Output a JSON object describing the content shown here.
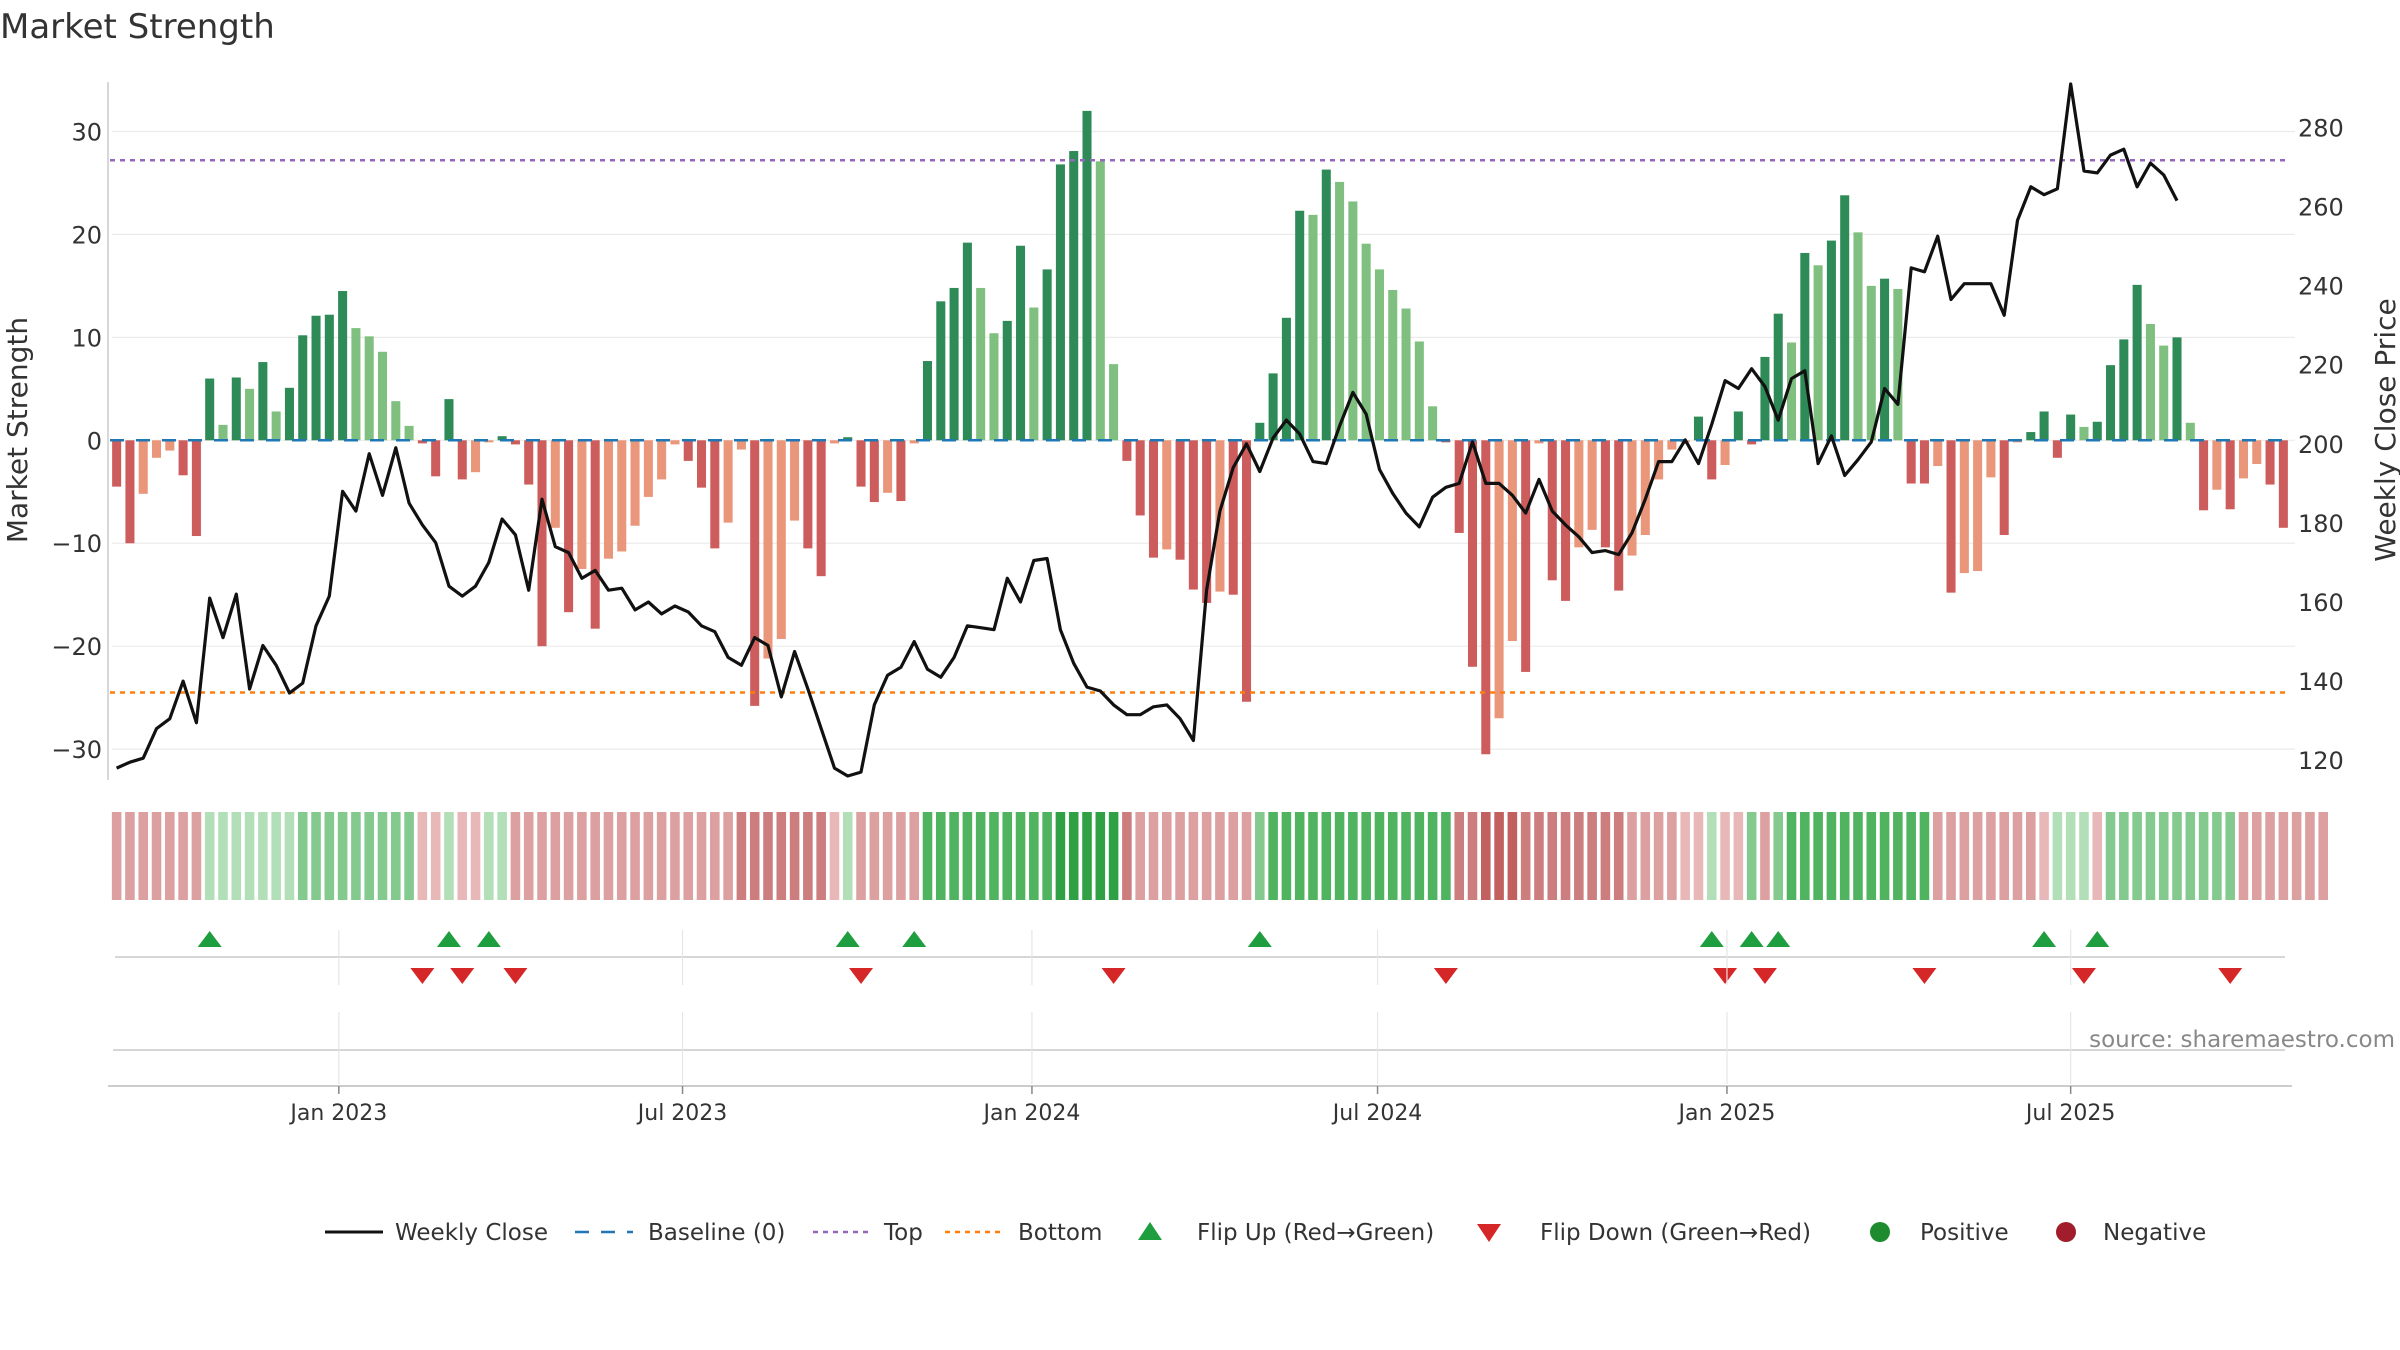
{
  "colors": {
    "pos_dark": "#2e8b57",
    "pos_light": "#7fbf7f",
    "neg_dark": "#cd5c5c",
    "neg_light": "#e9967a",
    "close_line": "#111111",
    "baseline": "#1f77b4",
    "top_line": "#9467bd",
    "bottom_line": "#ff7f0e",
    "flip_up": "#1f9e3f",
    "flip_down": "#d62728",
    "positive_dot": "#1e8c2e",
    "negative_dot": "#a11d2b"
  },
  "chart_data": {
    "type": "bar",
    "title": "Market Strength",
    "ylabel_left": "Market Strength",
    "ylabel_right": "Weekly Close Price",
    "ylim_left": [
      -33,
      35
    ],
    "yticks_left": [
      30,
      20,
      10,
      0,
      -10,
      -20,
      -30
    ],
    "yticks_left_labels": [
      "30",
      "20",
      "10",
      "0",
      "−10",
      "−20",
      "−30"
    ],
    "ylim_right": [
      115,
      292
    ],
    "yticks_right": [
      280,
      260,
      240,
      220,
      200,
      180,
      160,
      140,
      120
    ],
    "yticks_right_labels": [
      "280",
      "260",
      "240",
      "220",
      "200",
      "180",
      "160",
      "140",
      "120"
    ],
    "top_level": 27.2,
    "bottom_level": -24.5,
    "x_start": "2022-09-06",
    "week_step_days": 7,
    "xticks": [
      {
        "label": "Jan 2023",
        "date": "2023-01-01"
      },
      {
        "label": "Jul 2023",
        "date": "2023-07-01"
      },
      {
        "label": "Jan 2024",
        "date": "2024-01-01"
      },
      {
        "label": "Jul 2024",
        "date": "2024-07-01"
      },
      {
        "label": "Jan 2025",
        "date": "2025-01-01"
      },
      {
        "label": "Jul 2025",
        "date": "2025-07-01"
      }
    ],
    "strength": [
      -4.5,
      -10,
      -5.2,
      -1.7,
      -1,
      -3.4,
      -9.3,
      6,
      1.5,
      6.1,
      5,
      7.6,
      2.8,
      5.1,
      10.2,
      12.1,
      12.2,
      14.5,
      10.9,
      10.1,
      8.6,
      3.8,
      1.4,
      -0.3,
      -3.5,
      4,
      -3.8,
      -3.1,
      -0.2,
      0.4,
      -0.4,
      -4.3,
      -20,
      -8.5,
      -16.7,
      -12.5,
      -18.3,
      -11.5,
      -10.8,
      -8.3,
      -5.5,
      -3.8,
      -0.4,
      -2,
      -4.6,
      -10.5,
      -8,
      -0.9,
      -25.8,
      -21.2,
      -19.3,
      -7.8,
      -10.5,
      -13.2,
      -0.3,
      0.3,
      -4.5,
      -6,
      -5.1,
      -5.9,
      -0.3,
      7.7,
      13.5,
      14.8,
      19.2,
      14.8,
      10.4,
      11.6,
      18.9,
      12.9,
      16.6,
      26.8,
      28.1,
      32,
      27.1,
      7.4,
      -2,
      -7.3,
      -11.4,
      -10.6,
      -11.6,
      -14.5,
      -15.8,
      -14.7,
      -15,
      -25.4,
      1.7,
      6.5,
      11.9,
      22.3,
      21.9,
      26.3,
      25.1,
      23.2,
      19.1,
      16.6,
      14.6,
      12.8,
      9.6,
      3.3,
      -0.2,
      -9,
      -22,
      -30.5,
      -27,
      -19.5,
      -22.5,
      -0.3,
      -13.6,
      -15.6,
      -10.4,
      -8.7,
      -10.4,
      -14.6,
      -11.2,
      -9.2,
      -3.8,
      -0.9,
      -0.2,
      2.3,
      -3.8,
      -2.4,
      2.8,
      -0.4,
      8.1,
      12.3,
      9.5,
      18.2,
      17,
      19.4,
      23.8,
      20.2,
      15,
      15.7,
      14.7,
      -4.2,
      -4.2,
      -2.5,
      -14.8,
      -12.9,
      -12.7,
      -3.6,
      -9.2,
      -0.2,
      0.8,
      2.8,
      -1.7,
      2.5,
      1.3,
      1.8,
      7.3,
      9.8,
      15.1,
      11.3,
      9.2,
      10,
      1.7,
      -6.8,
      -4.8,
      -6.7,
      -3.7,
      -2.3,
      -4.3,
      -8.5
    ],
    "weekly_close": [
      118,
      119.5,
      120.5,
      128,
      130.5,
      140,
      129.5,
      161,
      151,
      162,
      138,
      149,
      144,
      137,
      139.5,
      154,
      161.5,
      188,
      183,
      197.5,
      187,
      199,
      185,
      179.5,
      175,
      164,
      161.5,
      164,
      170,
      181,
      177,
      163,
      186,
      174,
      172.5,
      166,
      168,
      163,
      163.5,
      158,
      160,
      157,
      159,
      157.5,
      154,
      152.5,
      146,
      144,
      151,
      149,
      136,
      147.5,
      138,
      128,
      118,
      116,
      117,
      134,
      141.5,
      143.5,
      150,
      143,
      141,
      146,
      154,
      153.5,
      153,
      166,
      160,
      170.5,
      171,
      153,
      144.5,
      138.5,
      137.5,
      134,
      131.5,
      131.5,
      133.5,
      134,
      130.5,
      125,
      163,
      183,
      194,
      200,
      193,
      201.5,
      206,
      202.5,
      195.5,
      195,
      204.5,
      213,
      207.5,
      193.5,
      187.5,
      182.5,
      179,
      186.5,
      189,
      190,
      200.5,
      190,
      190,
      187,
      182.5,
      191,
      183,
      179.5,
      176.5,
      172.5,
      173,
      172,
      177.5,
      186,
      195.5,
      195.5,
      201,
      195,
      205,
      216,
      214,
      219,
      214.5,
      206,
      216.5,
      218.5,
      195,
      202,
      192,
      196,
      200.5,
      214,
      210,
      244.5,
      243.5,
      252.5,
      236.5,
      240.5,
      240.5,
      240.5,
      232.5,
      256.5,
      265,
      263,
      264.5,
      291,
      269,
      268.5,
      273,
      274.5,
      265,
      271,
      268,
      261.5
    ],
    "regime_strength": [
      2,
      2,
      2,
      2,
      2,
      2,
      2,
      1,
      1,
      1,
      1,
      1,
      1,
      1,
      2,
      2,
      2,
      2,
      2,
      2,
      2,
      2,
      2,
      1,
      1,
      1,
      1,
      1,
      1,
      1,
      2,
      2,
      2,
      2,
      2,
      2,
      2,
      2,
      2,
      2,
      2,
      2,
      2,
      2,
      2,
      2,
      2,
      3,
      3,
      3,
      3,
      3,
      3,
      3,
      1,
      1,
      2,
      2,
      2,
      2,
      2,
      3,
      3,
      3,
      3,
      3,
      3,
      3,
      3,
      3,
      3,
      4,
      4,
      4,
      4,
      4,
      3,
      2,
      2,
      2,
      2,
      2,
      2,
      2,
      2,
      2,
      2,
      3,
      3,
      3,
      3,
      3,
      3,
      3,
      3,
      3,
      3,
      3,
      3,
      3,
      3,
      3,
      3,
      4,
      4,
      4,
      3,
      3,
      3,
      3,
      3,
      3,
      3,
      3,
      2,
      2,
      2,
      2,
      1,
      1,
      1,
      1,
      1,
      2,
      2,
      2,
      3,
      3,
      3,
      3,
      3,
      3,
      3,
      3,
      3,
      3,
      3,
      2,
      2,
      2,
      2,
      2,
      2,
      2,
      2,
      1,
      1,
      1,
      1,
      1,
      2,
      2,
      2,
      2,
      2,
      2,
      2,
      2,
      2,
      2,
      2,
      2,
      2,
      2,
      2,
      2,
      2
    ],
    "regime_positive": [
      false,
      false,
      false,
      false,
      false,
      false,
      false,
      true,
      true,
      true,
      true,
      true,
      true,
      true,
      true,
      true,
      true,
      true,
      true,
      true,
      true,
      true,
      true,
      false,
      false,
      true,
      false,
      false,
      true,
      true,
      false,
      false,
      false,
      false,
      false,
      false,
      false,
      false,
      false,
      false,
      false,
      false,
      false,
      false,
      false,
      false,
      false,
      false,
      false,
      false,
      false,
      false,
      false,
      false,
      false,
      true,
      false,
      false,
      false,
      false,
      false,
      true,
      true,
      true,
      true,
      true,
      true,
      true,
      true,
      true,
      true,
      true,
      true,
      true,
      true,
      true,
      false,
      false,
      false,
      false,
      false,
      false,
      false,
      false,
      false,
      false,
      true,
      true,
      true,
      true,
      true,
      true,
      true,
      true,
      true,
      true,
      true,
      true,
      true,
      true,
      true,
      false,
      false,
      false,
      false,
      false,
      false,
      false,
      false,
      false,
      false,
      false,
      false,
      false,
      false,
      false,
      false,
      false,
      false,
      false,
      true,
      false,
      false,
      true,
      false,
      true,
      true,
      true,
      true,
      true,
      true,
      true,
      true,
      true,
      true,
      true,
      true,
      false,
      false,
      false,
      false,
      false,
      false,
      false,
      false,
      false,
      true,
      true,
      true,
      false,
      true,
      true,
      true,
      true,
      true,
      true,
      true,
      true,
      true,
      true,
      false,
      false,
      false,
      false,
      false,
      false,
      false
    ],
    "flip_up_weeks": [
      7,
      25,
      28,
      55,
      60,
      86,
      120,
      123,
      125,
      145,
      149
    ],
    "flip_down_weeks": [
      23,
      26,
      30,
      56,
      75,
      100,
      121,
      124,
      136,
      148,
      159
    ],
    "legend": [
      {
        "label": "Weekly Close",
        "kind": "line"
      },
      {
        "label": "Baseline (0)",
        "kind": "dash"
      },
      {
        "label": "Top",
        "kind": "dot-purple"
      },
      {
        "label": "Bottom",
        "kind": "dot-orange"
      },
      {
        "label": "Flip Up (Red→Green)",
        "kind": "tri-up"
      },
      {
        "label": "Flip Down (Green→Red)",
        "kind": "tri-down"
      },
      {
        "label": "Positive",
        "kind": "dot-green"
      },
      {
        "label": "Negative",
        "kind": "dot-red"
      }
    ],
    "source": "source: sharemaestro.com"
  }
}
